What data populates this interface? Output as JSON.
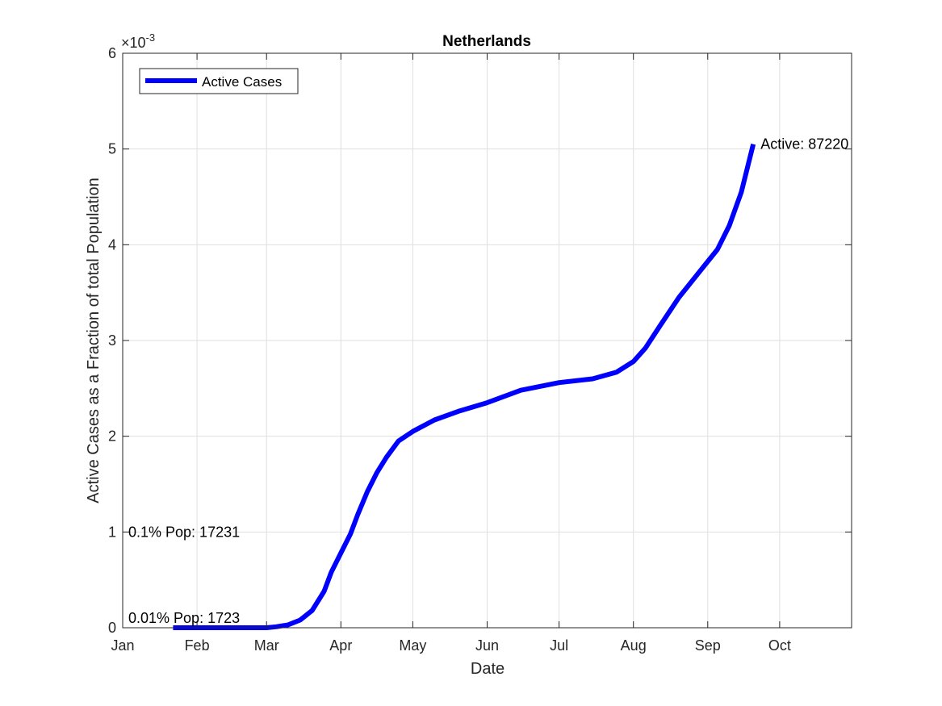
{
  "chart_data": {
    "type": "line",
    "title": "Netherlands",
    "xlabel": "Date",
    "ylabel": "Active Cases as a Fraction of total Population",
    "y_exponent_base": "×10",
    "y_exponent_power": "-3",
    "ylim": [
      0,
      6
    ],
    "y_ticks": [
      "0",
      "1",
      "2",
      "3",
      "4",
      "5",
      "6"
    ],
    "x_ticks": [
      "Jan",
      "Feb",
      "Mar",
      "Apr",
      "May",
      "Jun",
      "Jul",
      "Aug",
      "Sep",
      "Oct"
    ],
    "xlim": [
      "2020-01-01",
      "2020-10-31"
    ],
    "grid": true,
    "legend_position": "top-left",
    "series": [
      {
        "name": "Active Cases",
        "color": "#0000ff",
        "x": [
          "2020-01-22",
          "2020-02-15",
          "2020-03-01",
          "2020-03-05",
          "2020-03-10",
          "2020-03-15",
          "2020-03-20",
          "2020-03-25",
          "2020-03-28",
          "2020-04-01",
          "2020-04-05",
          "2020-04-08",
          "2020-04-12",
          "2020-04-16",
          "2020-04-20",
          "2020-04-25",
          "2020-05-01",
          "2020-05-10",
          "2020-05-20",
          "2020-06-01",
          "2020-06-15",
          "2020-07-01",
          "2020-07-15",
          "2020-07-25",
          "2020-08-01",
          "2020-08-06",
          "2020-08-12",
          "2020-08-20",
          "2020-08-28",
          "2020-09-05",
          "2020-09-10",
          "2020-09-15",
          "2020-09-20"
        ],
        "values": [
          0,
          0,
          0,
          0.01,
          0.03,
          0.08,
          0.18,
          0.38,
          0.58,
          0.78,
          0.98,
          1.18,
          1.42,
          1.62,
          1.78,
          1.95,
          2.05,
          2.17,
          2.26,
          2.35,
          2.48,
          2.56,
          2.6,
          2.67,
          2.78,
          2.92,
          3.15,
          3.45,
          3.7,
          3.95,
          4.2,
          4.55,
          5.05
        ]
      }
    ],
    "annotations": [
      {
        "text": "Active: 87220",
        "x": "2020-09-20",
        "y": 5.05
      },
      {
        "text": "0.1% Pop: 17231",
        "x": "2020-01-01",
        "y": 1.0
      },
      {
        "text": "0.01% Pop: 1723",
        "x": "2020-01-01",
        "y": 0.1
      }
    ]
  }
}
